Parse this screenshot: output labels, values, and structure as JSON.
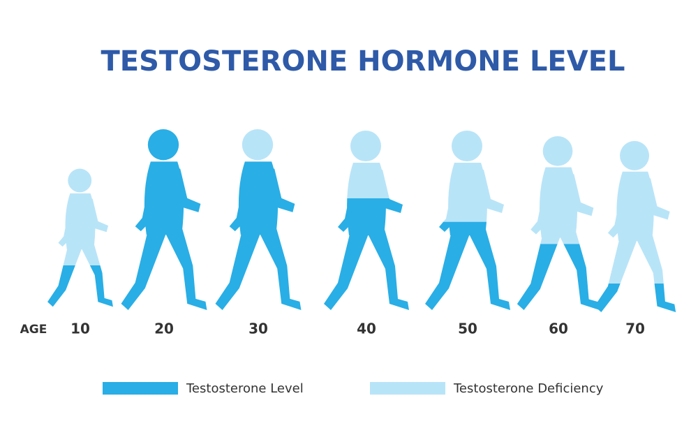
{
  "chart_data": {
    "type": "silhouette",
    "title": "TESTOSTERONE HORMONE LEVEL",
    "x_label": "AGE",
    "categories": [
      "10",
      "20",
      "30",
      "40",
      "50",
      "60",
      "70"
    ],
    "series": [
      {
        "name": "Testosterone Level",
        "color": "#29aee6",
        "values": [
          30,
          100,
          82,
          62,
          49,
          38,
          17
        ]
      },
      {
        "name": "Testosterone Deficiency",
        "color": "#b8e4f8",
        "values": [
          70,
          0,
          18,
          38,
          51,
          62,
          83
        ]
      }
    ],
    "ylim": [
      0,
      100
    ]
  }
}
